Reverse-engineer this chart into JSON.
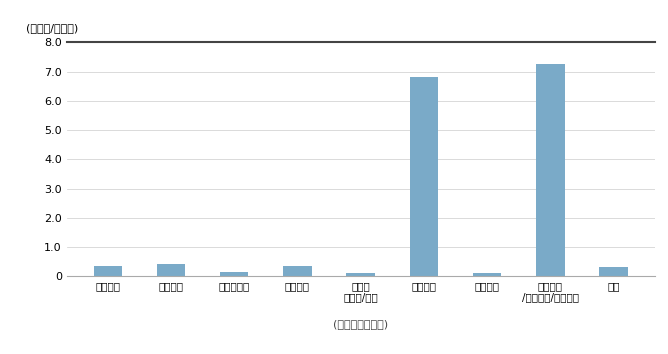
{
  "categories": [
    "생물의약",
    "생물화학",
    "바이오식품",
    "생물환경",
    "바이오\n에너지/자원",
    "생물전자",
    "생물공정",
    "생물검정\n/기기정보/연구개발",
    "전체"
  ],
  "values": [
    0.33,
    0.43,
    0.13,
    0.33,
    0.1,
    6.83,
    0.12,
    7.25,
    0.3
  ],
  "bar_color": "#7aaac8",
  "ylabel": "(연구직/생산직)",
  "xlabel": "(바이오산업분류)",
  "ylim": [
    0,
    8.0
  ],
  "yticks": [
    0,
    1.0,
    2.0,
    3.0,
    4.0,
    5.0,
    6.0,
    7.0,
    8.0
  ],
  "background_color": "#ffffff",
  "grid_color": "#cccccc"
}
